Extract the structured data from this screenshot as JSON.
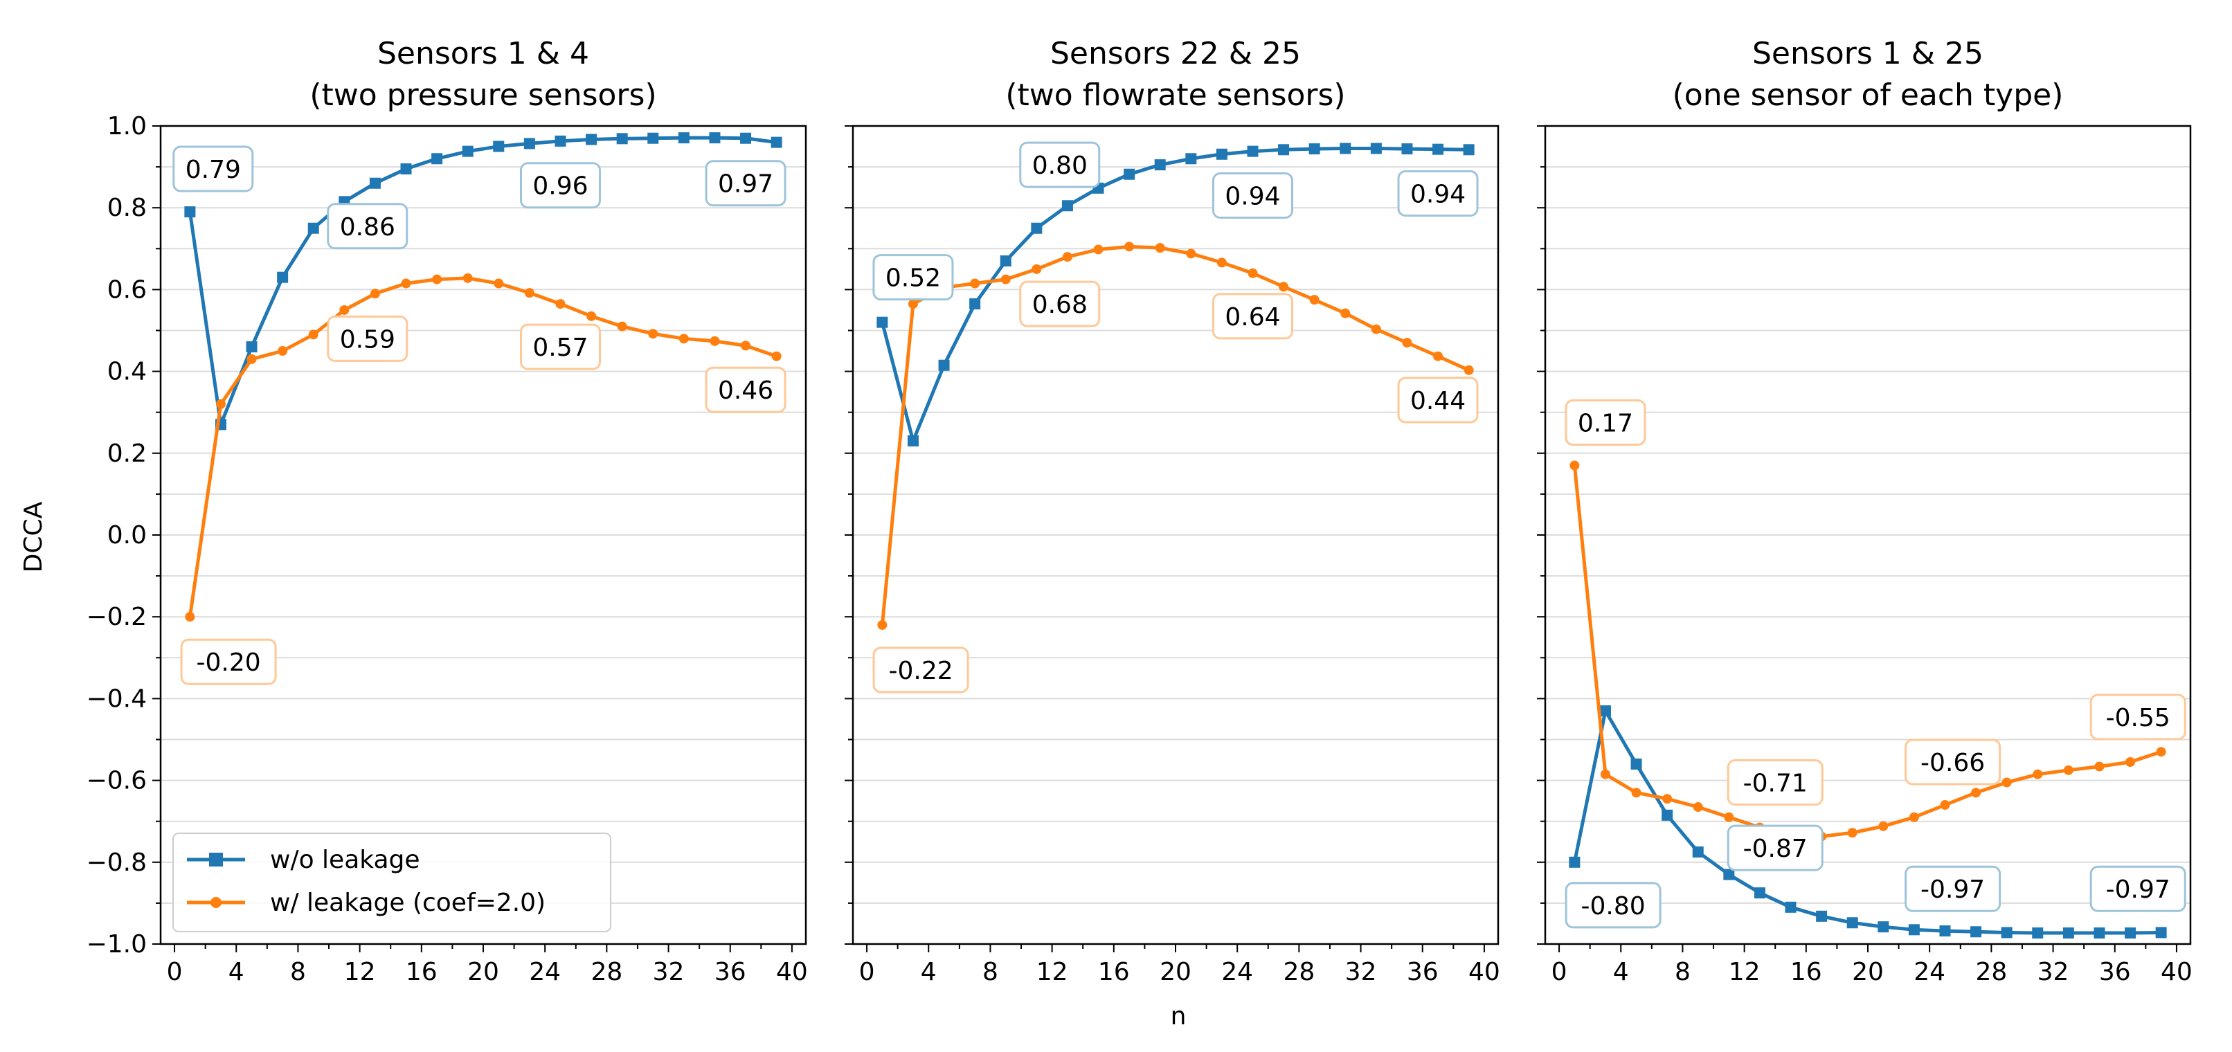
{
  "figure": {
    "shared_xlabel": "n",
    "shared_ylabel": "DCCA"
  },
  "legend": {
    "location": "lower-left of first panel",
    "entries": [
      {
        "label": "w/o leakage",
        "marker": "square"
      },
      {
        "label": "w/ leakage (coef=2.0)",
        "marker": "circle"
      }
    ]
  },
  "colors": {
    "series_without_leakage": "#1f77b4",
    "series_with_leakage": "#ff7f0e",
    "label_box_blue": "#9ec4d9",
    "label_box_orange": "#ffc896",
    "gridline": "#dcdcdc"
  },
  "chart_data": [
    {
      "type": "line",
      "title": "Sensors 1 & 4",
      "subtitle": "(two pressure sensors)",
      "xlabel": "",
      "ylabel": "DCCA",
      "xlim": [
        -0.9,
        40.9
      ],
      "ylim": [
        -1.0,
        1.0
      ],
      "xticks": [
        0,
        4,
        8,
        12,
        16,
        20,
        24,
        28,
        32,
        36,
        40
      ],
      "yticks": [
        -1.0,
        -0.8,
        -0.6,
        -0.4,
        -0.2,
        0.0,
        0.2,
        0.4,
        0.6,
        0.8,
        1.0
      ],
      "ytick_labels": [
        "−1.0",
        "−0.8",
        "−0.6",
        "−0.4",
        "−0.2",
        "0.0",
        "0.2",
        "0.4",
        "0.6",
        "0.8",
        "1.0"
      ],
      "grid": "horizontal",
      "x": [
        1,
        3,
        5,
        7,
        9,
        11,
        13,
        15,
        17,
        19,
        21,
        23,
        25,
        27,
        29,
        31,
        33,
        35,
        37,
        39
      ],
      "series": [
        {
          "name": "w/o leakage",
          "values": [
            0.79,
            0.27,
            0.46,
            0.63,
            0.75,
            0.815,
            0.86,
            0.895,
            0.92,
            0.938,
            0.95,
            0.957,
            0.963,
            0.967,
            0.969,
            0.97,
            0.971,
            0.971,
            0.97,
            0.96
          ]
        },
        {
          "name": "w/ leakage (coef=2.0)",
          "values": [
            -0.2,
            0.32,
            0.43,
            0.45,
            0.49,
            0.55,
            0.59,
            0.615,
            0.625,
            0.628,
            0.615,
            0.592,
            0.565,
            0.535,
            0.51,
            0.492,
            0.48,
            0.474,
            0.463,
            0.437
          ]
        }
      ],
      "annotations": [
        {
          "text": "0.79",
          "series": 0,
          "x": 2.5,
          "y": 0.895
        },
        {
          "text": "0.86",
          "series": 0,
          "x": 12.5,
          "y": 0.755
        },
        {
          "text": "0.96",
          "series": 0,
          "x": 25.0,
          "y": 0.855
        },
        {
          "text": "0.97",
          "series": 0,
          "x": 37.0,
          "y": 0.86
        },
        {
          "text": "0.59",
          "series": 1,
          "x": 12.5,
          "y": 0.48
        },
        {
          "text": "0.57",
          "series": 1,
          "x": 25.0,
          "y": 0.46
        },
        {
          "text": "0.46",
          "series": 1,
          "x": 37.0,
          "y": 0.355
        },
        {
          "text": "-0.20",
          "series": 1,
          "x": 3.5,
          "y": -0.31
        }
      ]
    },
    {
      "type": "line",
      "title": "Sensors 22 & 25",
      "subtitle": "(two flowrate sensors)",
      "xlabel": "n",
      "ylabel": "",
      "xlim": [
        -0.9,
        40.9
      ],
      "ylim": [
        -1.0,
        1.0
      ],
      "xticks": [
        0,
        4,
        8,
        12,
        16,
        20,
        24,
        28,
        32,
        36,
        40
      ],
      "grid": "horizontal",
      "x": [
        1,
        3,
        5,
        7,
        9,
        11,
        13,
        15,
        17,
        19,
        21,
        23,
        25,
        27,
        29,
        31,
        33,
        35,
        37,
        39
      ],
      "series": [
        {
          "name": "w/o leakage",
          "values": [
            0.52,
            0.23,
            0.415,
            0.565,
            0.67,
            0.75,
            0.805,
            0.848,
            0.882,
            0.905,
            0.92,
            0.931,
            0.938,
            0.942,
            0.944,
            0.945,
            0.945,
            0.944,
            0.943,
            0.942
          ]
        },
        {
          "name": "w/ leakage (coef=2.0)",
          "values": [
            -0.22,
            0.565,
            0.605,
            0.615,
            0.625,
            0.65,
            0.68,
            0.698,
            0.705,
            0.702,
            0.688,
            0.666,
            0.64,
            0.607,
            0.575,
            0.542,
            0.503,
            0.47,
            0.437,
            0.403
          ]
        }
      ],
      "annotations": [
        {
          "text": "0.80",
          "series": 0,
          "x": 12.5,
          "y": 0.905
        },
        {
          "text": "0.94",
          "series": 0,
          "x": 25.0,
          "y": 0.83
        },
        {
          "text": "0.94",
          "series": 0,
          "x": 37.0,
          "y": 0.835
        },
        {
          "text": "0.52",
          "series": 0,
          "x": 3.0,
          "y": 0.63
        },
        {
          "text": "0.68",
          "series": 1,
          "x": 12.5,
          "y": 0.565
        },
        {
          "text": "0.64",
          "series": 1,
          "x": 25.0,
          "y": 0.535
        },
        {
          "text": "0.44",
          "series": 1,
          "x": 37.0,
          "y": 0.33
        },
        {
          "text": "-0.22",
          "series": 1,
          "x": 3.5,
          "y": -0.33
        }
      ]
    },
    {
      "type": "line",
      "title": "Sensors 1 & 25",
      "subtitle": "(one sensor of each type)",
      "xlabel": "",
      "ylabel": "",
      "xlim": [
        -0.9,
        40.9
      ],
      "ylim": [
        -1.0,
        1.0
      ],
      "xticks": [
        0,
        4,
        8,
        12,
        16,
        20,
        24,
        28,
        32,
        36,
        40
      ],
      "grid": "horizontal",
      "x": [
        1,
        3,
        5,
        7,
        9,
        11,
        13,
        15,
        17,
        19,
        21,
        23,
        25,
        27,
        29,
        31,
        33,
        35,
        37,
        39
      ],
      "series": [
        {
          "name": "w/o leakage",
          "values": [
            -0.8,
            -0.43,
            -0.56,
            -0.685,
            -0.775,
            -0.83,
            -0.875,
            -0.91,
            -0.932,
            -0.948,
            -0.958,
            -0.965,
            -0.968,
            -0.97,
            -0.972,
            -0.973,
            -0.973,
            -0.973,
            -0.973,
            -0.972
          ]
        },
        {
          "name": "w/ leakage (coef=2.0)",
          "values": [
            0.17,
            -0.585,
            -0.63,
            -0.645,
            -0.665,
            -0.69,
            -0.715,
            -0.73,
            -0.737,
            -0.728,
            -0.712,
            -0.69,
            -0.66,
            -0.63,
            -0.605,
            -0.585,
            -0.575,
            -0.566,
            -0.555,
            -0.53
          ]
        }
      ],
      "annotations": [
        {
          "text": "0.17",
          "series": 1,
          "x": 3.0,
          "y": 0.275
        },
        {
          "text": "-0.71",
          "series": 1,
          "x": 14.0,
          "y": -0.605
        },
        {
          "text": "-0.66",
          "series": 1,
          "x": 25.5,
          "y": -0.555
        },
        {
          "text": "-0.55",
          "series": 1,
          "x": 37.5,
          "y": -0.445
        },
        {
          "text": "-0.87",
          "series": 0,
          "x": 14.0,
          "y": -0.765
        },
        {
          "text": "-0.97",
          "series": 0,
          "x": 25.5,
          "y": -0.865
        },
        {
          "text": "-0.97",
          "series": 0,
          "x": 37.5,
          "y": -0.865
        },
        {
          "text": "-0.80",
          "series": 0,
          "x": 3.5,
          "y": -0.905
        }
      ]
    }
  ]
}
